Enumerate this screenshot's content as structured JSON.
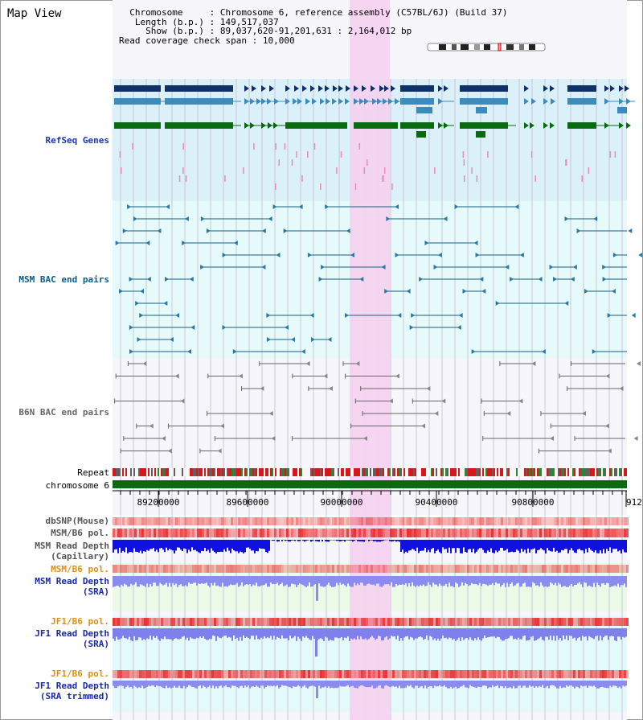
{
  "window": {
    "title": "Map View"
  },
  "info": {
    "chromosome_label": "Chromosome",
    "chromosome_value": "Chromosome 6, reference assembly (C57BL/6J) (Build 37)",
    "length_label": "Length (b.p.)",
    "length_value": "149,517,037",
    "show_label": "Show (b.p.)",
    "show_value": "89,037,620-91,201,631 : 2,164,012 bp",
    "coverage_label": "Read coverage check span",
    "coverage_value": "10,000"
  },
  "tracks": {
    "refseq": "RefSeq Genes",
    "msm_bac": "MSM BAC end pairs",
    "b6n_bac": "B6N BAC end pairs",
    "repeat": "Repeat",
    "chromosome": "chromosome 6",
    "dbsnp": "dbSNP(Mouse)",
    "msm_pol_1": "MSM/B6 pol.",
    "msm_depth_cap_1": "MSM Read Depth",
    "msm_depth_cap_2": "(Capillary)",
    "msm_pol_2": "MSM/B6 pol.",
    "msm_depth_sra_1": "MSM Read Depth",
    "msm_depth_sra_2": "(SRA)",
    "jf1_pol_1": "JF1/B6 pol.",
    "jf1_depth_sra_1": "JF1 Read Depth",
    "jf1_depth_sra_2": "(SRA)",
    "jf1_pol_2": "JF1/B6 pol.",
    "jf1_depth_trim_1": "JF1 Read Depth",
    "jf1_depth_trim_2": "(SRA trimmed)"
  },
  "axis": {
    "ticks": [
      "89200000",
      "89600000",
      "90000000",
      "90400000",
      "90800000",
      "912"
    ]
  },
  "colors": {
    "refseq_bg": "#dcf0fa",
    "bac_bg": "#e6fafa",
    "highlight": "#f5d2f0",
    "gene_dark": "#10306a",
    "gene_mid": "#3a8cc0",
    "gene_green": "#0a6a10",
    "chromosome": "#0a6a10",
    "msm_label": "#0a5a8a",
    "b6n_label": "#666666",
    "refseq_label": "#1a3aaa",
    "orange_label": "#e09010",
    "blue_label": "#1a2aa0"
  }
}
